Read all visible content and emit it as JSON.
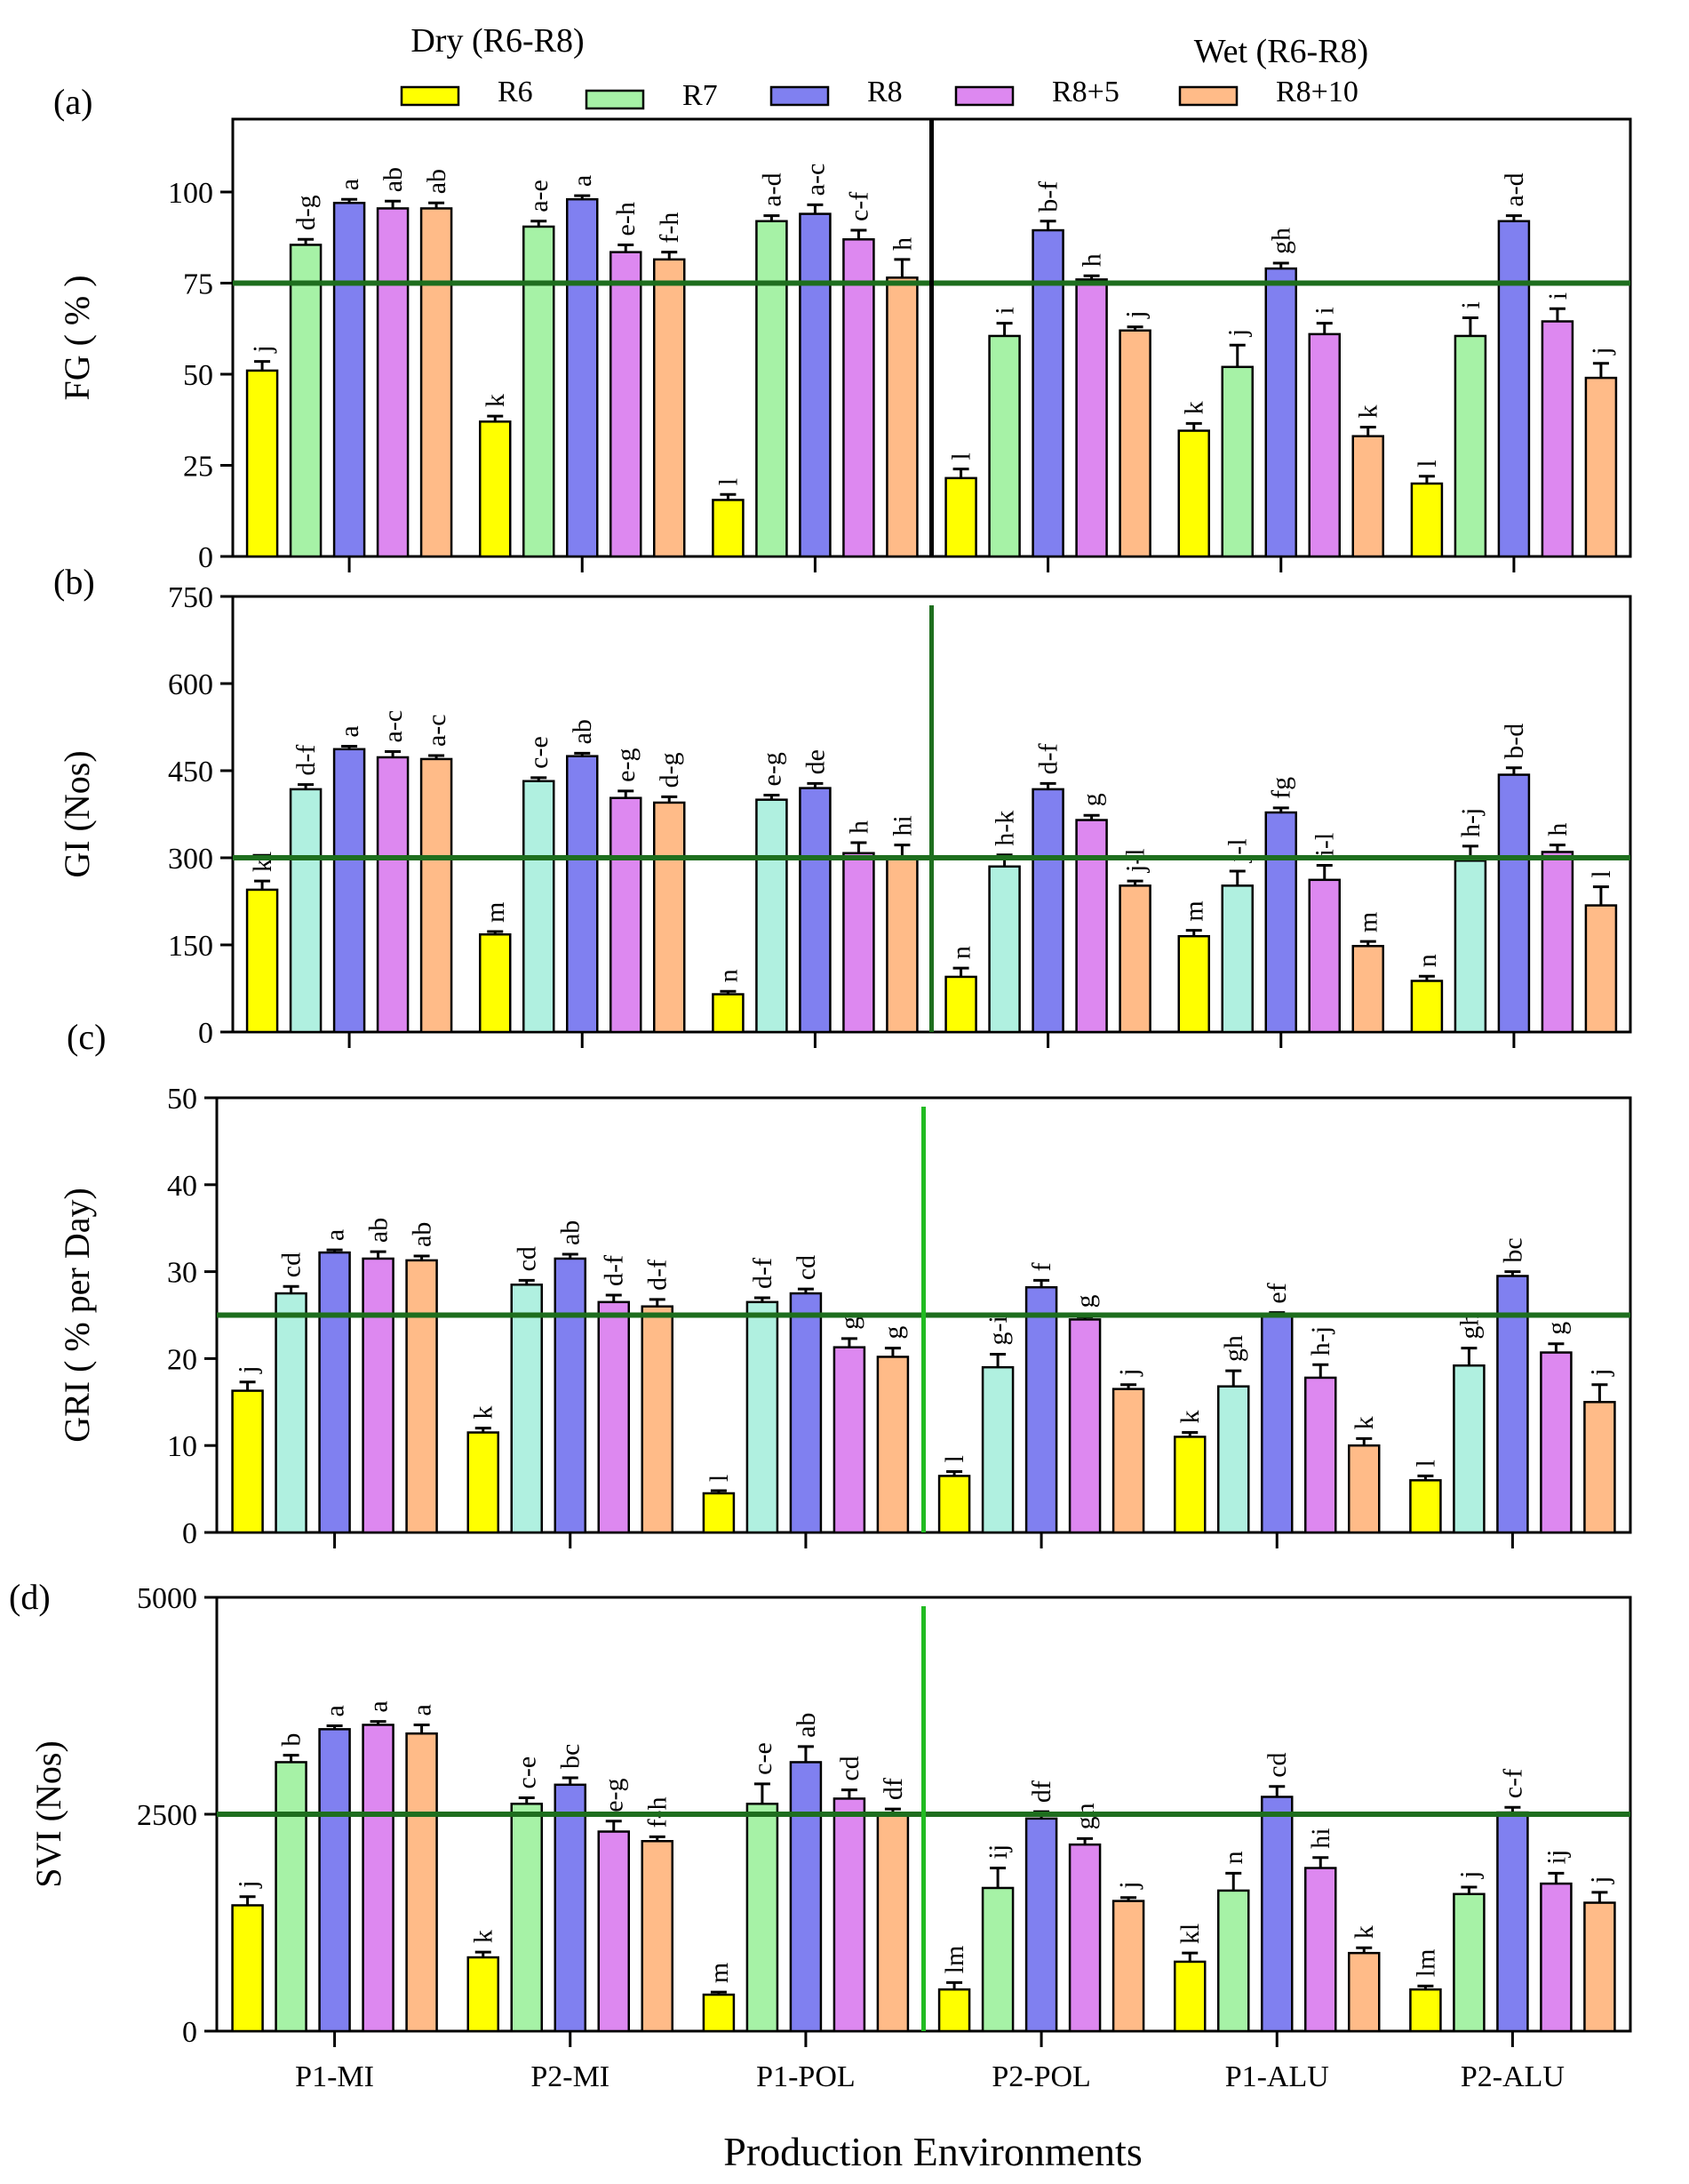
{
  "chart_data": {
    "type": "bar",
    "xlabel": "Production Environments",
    "categories": [
      "P1-MI",
      "P2-MI",
      "P1-POL",
      "P2-POL",
      "P1-ALU",
      "P2-ALU"
    ],
    "group_labels": [
      "Dry (R6-R8)",
      "Wet (R6-R8)"
    ],
    "legend": [
      "R6",
      "R7",
      "R8",
      "R8+5",
      "R8+10"
    ],
    "colors": {
      "R6": "#ffff00",
      "R7": "#a6f2a6",
      "R8": "#8080f0",
      "R8+5": "#dd88f0",
      "R8+10": "#ffbb88",
      "ref_line": "#1e6e1e",
      "separator_green": "#22bb22"
    },
    "panels": [
      {
        "letter": "(a)",
        "ylabel": "FG ( % )",
        "ylim": [
          0,
          120
        ],
        "yticks": [
          0,
          25,
          50,
          75,
          100
        ],
        "ref_line": 75,
        "separator": "black",
        "r7_color": "#a6f2a6",
        "series": [
          {
            "name": "R6",
            "values": [
              51,
              37,
              15.5,
              21.5,
              34.5,
              20
            ],
            "errors": [
              2.5,
              1.5,
              1.5,
              2.5,
              2,
              2
            ],
            "labels": [
              "j",
              "k",
              "l",
              "l",
              "k",
              "l"
            ]
          },
          {
            "name": "R7",
            "values": [
              85.5,
              90.5,
              92,
              60.5,
              52,
              60.5
            ],
            "errors": [
              1.5,
              1.5,
              1.5,
              3.5,
              6,
              5
            ],
            "labels": [
              "d-g",
              "a-e",
              "a-d",
              "i",
              "j",
              "i"
            ]
          },
          {
            "name": "R8",
            "values": [
              97,
              98,
              94,
              89.5,
              79,
              92
            ],
            "errors": [
              1,
              1,
              2.5,
              2.5,
              1.5,
              1.5
            ],
            "labels": [
              "a",
              "a",
              "a-c",
              "b-f",
              "gh",
              "a-d"
            ]
          },
          {
            "name": "R8+5",
            "values": [
              95.5,
              83.5,
              87,
              76,
              61,
              64.5
            ],
            "errors": [
              2,
              2,
              2.5,
              1,
              3,
              3.5
            ],
            "labels": [
              "ab",
              "e-h",
              "c-f",
              "h",
              "i",
              "i"
            ]
          },
          {
            "name": "R8+10",
            "values": [
              95.5,
              81.5,
              76.5,
              62,
              33,
              49
            ],
            "errors": [
              1.5,
              2,
              5,
              1,
              2.5,
              4
            ],
            "labels": [
              "ab",
              "f-h",
              "h",
              "j",
              "k",
              "j"
            ]
          }
        ]
      },
      {
        "letter": "(b)",
        "ylabel": "GI (Nos)",
        "ylim": [
          0,
          750
        ],
        "yticks": [
          0,
          150,
          300,
          450,
          600,
          750
        ],
        "ref_line": 300,
        "separator": "darkgreen",
        "r7_color": "#b0f0e0",
        "series": [
          {
            "name": "R6",
            "values": [
              245,
              168,
              65,
              95,
              165,
              88
            ],
            "errors": [
              15,
              5,
              5,
              15,
              10,
              8
            ],
            "labels": [
              "kl",
              "m",
              "n",
              "n",
              "m",
              "n"
            ]
          },
          {
            "name": "R7",
            "values": [
              418,
              432,
              400,
              285,
              252,
              295
            ],
            "errors": [
              8,
              6,
              8,
              20,
              25,
              25
            ],
            "labels": [
              "d-f",
              "c-e",
              "e-g",
              "h-k",
              "j-l",
              "h-j"
            ]
          },
          {
            "name": "R8",
            "values": [
              487,
              475,
              420,
              418,
              378,
              443
            ],
            "errors": [
              5,
              5,
              8,
              10,
              8,
              12
            ],
            "labels": [
              "a",
              "ab",
              "de",
              "d-f",
              "fg",
              "b-d"
            ]
          },
          {
            "name": "R8+5",
            "values": [
              473,
              403,
              308,
              365,
              262,
              310
            ],
            "errors": [
              10,
              12,
              18,
              8,
              25,
              12
            ],
            "labels": [
              "a-c",
              "e-g",
              "h",
              "g",
              "i-l",
              "h"
            ]
          },
          {
            "name": "R8+10",
            "values": [
              470,
              395,
              300,
              252,
              148,
              218
            ],
            "errors": [
              6,
              10,
              22,
              8,
              8,
              32
            ],
            "labels": [
              "a-c",
              "d-g",
              "hi",
              "j-l",
              "m",
              "l"
            ]
          }
        ]
      },
      {
        "letter": "(c)",
        "ylabel": "GRI ( % per Day)",
        "ylim": [
          0,
          50
        ],
        "yticks": [
          0,
          10,
          20,
          30,
          40,
          50
        ],
        "ref_line": 25,
        "separator": "green",
        "r7_color": "#b0f0e0",
        "series": [
          {
            "name": "R6",
            "values": [
              16.3,
              11.5,
              4.5,
              6.5,
              11,
              6
            ],
            "errors": [
              1,
              0.5,
              0.3,
              0.5,
              0.5,
              0.5
            ],
            "labels": [
              "j",
              "k",
              "l",
              "l",
              "k",
              "l"
            ]
          },
          {
            "name": "R7",
            "values": [
              27.5,
              28.5,
              26.5,
              19,
              16.8,
              19.2
            ],
            "errors": [
              0.8,
              0.5,
              0.5,
              1.5,
              1.8,
              2
            ],
            "labels": [
              "cd",
              "cd",
              "d-f",
              "g-i",
              "gh",
              "gh"
            ]
          },
          {
            "name": "R8",
            "values": [
              32.2,
              31.5,
              27.5,
              28.2,
              25,
              29.5
            ],
            "errors": [
              0.3,
              0.5,
              0.5,
              0.8,
              0.3,
              0.5
            ],
            "labels": [
              "a",
              "ab",
              "cd",
              "f",
              "ef",
              "bc"
            ]
          },
          {
            "name": "R8+5",
            "values": [
              31.5,
              26.5,
              21.3,
              24.5,
              17.8,
              20.7
            ],
            "errors": [
              0.8,
              0.8,
              1,
              0.3,
              1.5,
              1
            ],
            "labels": [
              "ab",
              "d-f",
              "g",
              "g",
              "h-j",
              "g"
            ]
          },
          {
            "name": "R8+10",
            "values": [
              31.3,
              26,
              20.2,
              16.5,
              10,
              15
            ],
            "errors": [
              0.5,
              0.8,
              1,
              0.5,
              0.8,
              2
            ],
            "labels": [
              "ab",
              "d-f",
              "g",
              "j",
              "k",
              "j"
            ]
          }
        ]
      },
      {
        "letter": "(d)",
        "ylabel": "SVI (Nos)",
        "ylim": [
          0,
          5000
        ],
        "yticks": [
          0,
          2500,
          5000
        ],
        "ref_line": 2500,
        "separator": "green",
        "r7_color": "#a6f2a6",
        "series": [
          {
            "name": "R6",
            "values": [
              1450,
              850,
              420,
              480,
              800,
              480
            ],
            "errors": [
              100,
              60,
              30,
              80,
              100,
              40
            ],
            "labels": [
              "j",
              "k",
              "m",
              "lm",
              "kl",
              "lm"
            ]
          },
          {
            "name": "R7",
            "values": [
              3100,
              2620,
              2620,
              1650,
              1620,
              1580
            ],
            "errors": [
              80,
              70,
              230,
              230,
              200,
              80
            ],
            "labels": [
              "b",
              "c-e",
              "c-e",
              "ij",
              "n",
              "j"
            ]
          },
          {
            "name": "R8",
            "values": [
              3480,
              2840,
              3100,
              2450,
              2700,
              2520
            ],
            "errors": [
              40,
              80,
              180,
              80,
              120,
              60
            ],
            "labels": [
              "a",
              "bc",
              "ab",
              "df",
              "cd",
              "c-f"
            ]
          },
          {
            "name": "R8+5",
            "values": [
              3530,
              2300,
              2680,
              2150,
              1880,
              1700
            ],
            "errors": [
              40,
              120,
              100,
              70,
              120,
              120
            ],
            "labels": [
              "a",
              "e-g",
              "cd",
              "gh",
              "hi",
              "ij"
            ]
          },
          {
            "name": "R8+10",
            "values": [
              3430,
              2190,
              2500,
              1500,
              900,
              1480
            ],
            "errors": [
              100,
              50,
              60,
              40,
              60,
              120
            ],
            "labels": [
              "a",
              "f-h",
              "df",
              "j",
              "k",
              "j"
            ]
          }
        ]
      }
    ]
  }
}
